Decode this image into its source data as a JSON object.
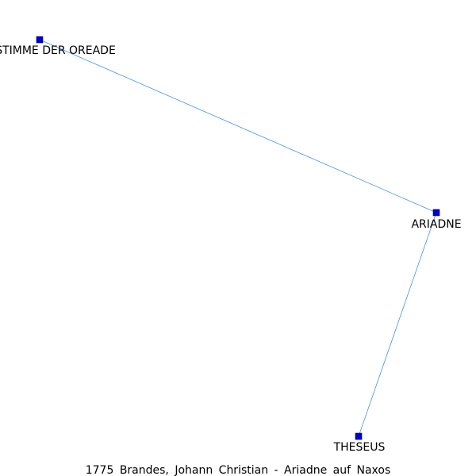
{
  "graph": {
    "caption": "1775 Brandes, Johann Christian - Ariadne auf Naxos",
    "node_color": "#0000cc",
    "edge_color": "#4a90e2",
    "nodes": [
      {
        "id": "stimme",
        "label": "STIMME DER OREADE"
      },
      {
        "id": "ariadne",
        "label": "ARIADNE"
      },
      {
        "id": "theseus",
        "label": "THESEUS"
      }
    ],
    "edges": [
      {
        "source": "stimme",
        "target": "ariadne"
      },
      {
        "source": "ariadne",
        "target": "theseus"
      }
    ]
  }
}
